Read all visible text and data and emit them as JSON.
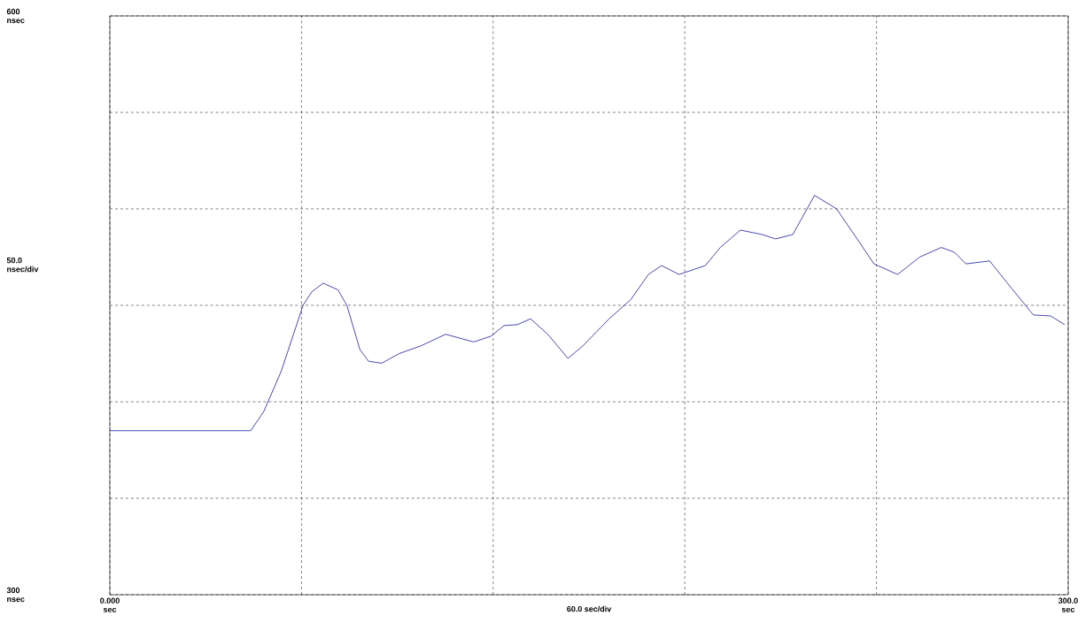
{
  "chart_data": {
    "type": "line",
    "xlabel": "60.0 sec/div",
    "ylabel": "50.0 nsec/div",
    "xlim": [
      0,
      300
    ],
    "ylim": [
      300,
      600
    ],
    "xticks": [
      {
        "value": 0,
        "label": "0.000 sec"
      },
      {
        "value": 60,
        "label": null
      },
      {
        "value": 120,
        "label": null
      },
      {
        "value": 180,
        "label": null
      },
      {
        "value": 240,
        "label": null
      },
      {
        "value": 300,
        "label": "300.0 sec"
      }
    ],
    "yticks": [
      {
        "value": 300,
        "label": "300 nsec"
      },
      {
        "value": 350,
        "label": null
      },
      {
        "value": 400,
        "label": null
      },
      {
        "value": 450,
        "label": null
      },
      {
        "value": 500,
        "label": null
      },
      {
        "value": 550,
        "label": null
      },
      {
        "value": 600,
        "label": "600 nsec"
      }
    ],
    "grid": true,
    "line_style": "solid",
    "marker": "none",
    "series": [
      {
        "color": "#1c1c9c",
        "x": [
          0,
          44.1,
          48.2,
          53.6,
          60.5,
          63.2,
          66.8,
          71.4,
          74.2,
          78.3,
          81.0,
          85.1,
          90.6,
          97.4,
          105.1,
          113.9,
          119.3,
          123.4,
          127.6,
          131.7,
          137.1,
          143.4,
          148.1,
          156.3,
          163.1,
          168.6,
          172.7,
          178.2,
          186.4,
          191.1,
          197.4,
          204.2,
          208.4,
          213.8,
          220.6,
          227.5,
          233.0,
          239.2,
          246.6,
          253.5,
          260.3,
          264.4,
          268.0,
          275.4,
          282.2,
          289.1,
          294.5,
          298.9
        ],
        "values": [
          385,
          385,
          395,
          415.6,
          450,
          457,
          461.5,
          458,
          450,
          427,
          421,
          420,
          425,
          429,
          435,
          431,
          434,
          439.5,
          440,
          443,
          435,
          422.5,
          429,
          443,
          453,
          466,
          470.6,
          466,
          470.6,
          480,
          489,
          486.7,
          484.4,
          486.7,
          507,
          500,
          486.7,
          471.5,
          466,
          475,
          480,
          477.5,
          471.5,
          473,
          459,
          445,
          444.5,
          440
        ]
      }
    ]
  }
}
